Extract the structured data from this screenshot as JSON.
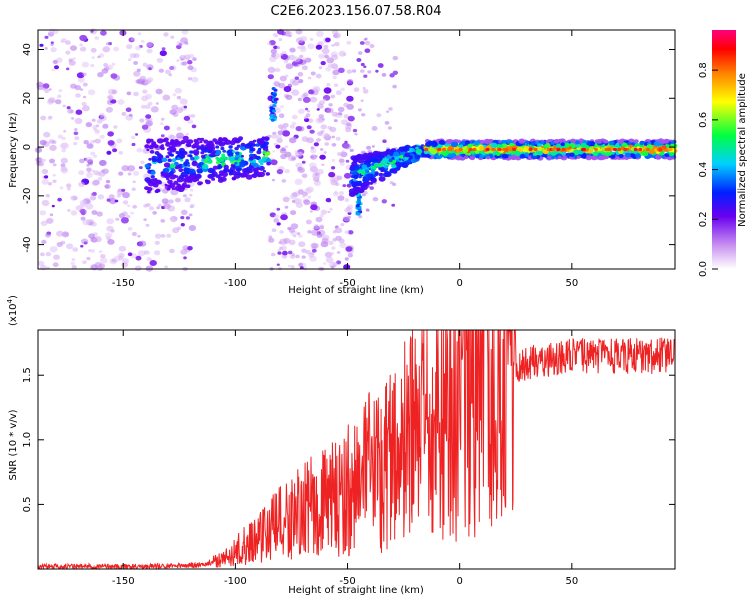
{
  "title": "C2E6.2023.156.07.58.R04",
  "chart_data": [
    {
      "type": "heatmap",
      "xlabel": "Height of straight line (km)",
      "ylabel": "Frequency (Hz)",
      "xlim": [
        -188,
        96
      ],
      "ylim": [
        -50,
        48
      ],
      "xticks": [
        "-150",
        "-100",
        "-50",
        "0",
        "50"
      ],
      "yticks": [
        "-40",
        "-20",
        "0",
        "20",
        "40"
      ],
      "colorbar": {
        "label": "Normalized spectral amplitude",
        "range": [
          0,
          1
        ],
        "ticks": [
          "0.0",
          "0.2",
          "0.4",
          "0.6",
          "0.8"
        ],
        "colors": [
          "#ffffff",
          "#a020f0",
          "#0000ff",
          "#00ffff",
          "#00ff00",
          "#ffff00",
          "#ff0000",
          "#ff0080"
        ]
      },
      "regions": [
        {
          "x_range": [
            -188,
            -120
          ],
          "desc": "noise",
          "amplitude": 0.1
        },
        {
          "x_range": [
            -140,
            -85
          ],
          "center_freq": -8,
          "amplitude": 0.4
        },
        {
          "x_range": [
            -85,
            -48
          ],
          "desc": "noise band",
          "amplitude": 0.1
        },
        {
          "x_range": [
            -48,
            -15
          ],
          "center_freq_start": -12,
          "center_freq_end": 0,
          "amplitude": 0.5
        },
        {
          "x_range": [
            -15,
            96
          ],
          "center_freq": -1,
          "amplitude": 0.8
        }
      ]
    },
    {
      "type": "line",
      "xlabel": "Height of straight line (km)",
      "ylabel": "SNR (10 * v/v)",
      "yscale_label": "(x10",
      "yscale_exp": "4",
      "xlim": [
        -188,
        96
      ],
      "ylim": [
        0,
        1.85
      ],
      "xticks": [
        "-150",
        "-100",
        "-50",
        "0",
        "50"
      ],
      "yticks": [
        "0.5",
        "1.0",
        "1.5"
      ],
      "color": "#ee2222",
      "envelope": {
        "x": [
          -188,
          -140,
          -115,
          -105,
          -90,
          -70,
          -55,
          -40,
          -25,
          -15,
          -5,
          0,
          10,
          20,
          30,
          50,
          70,
          96
        ],
        "y": [
          0.02,
          0.02,
          0.03,
          0.08,
          0.25,
          0.45,
          0.55,
          0.75,
          0.95,
          1.1,
          1.25,
          1.45,
          1.5,
          1.5,
          1.6,
          1.65,
          1.65,
          1.65
        ]
      }
    }
  ]
}
